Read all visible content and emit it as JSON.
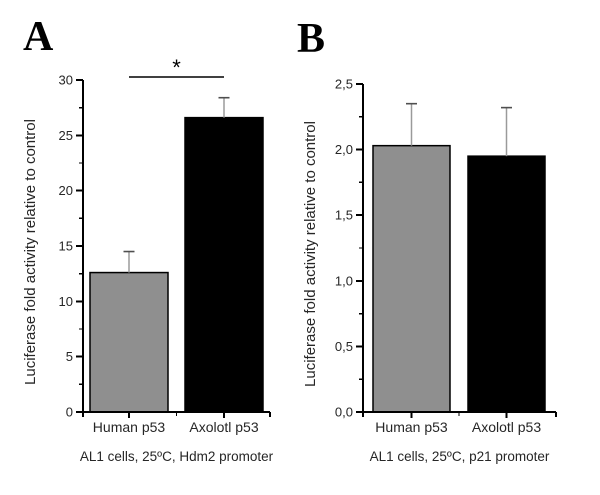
{
  "figure": {
    "background": "#ffffff"
  },
  "colors": {
    "bar_gray": "#8f8f8f",
    "bar_black": "#000000",
    "bar_border": "#000000",
    "axis": "#000000",
    "error_line": "#9a9a9a",
    "error_cap": "#4f4f4f",
    "text": "#262626"
  },
  "chart_data": [
    {
      "type": "bar",
      "panel": "A",
      "title": "AL1 cells, 25ºC, Hdm2 promoter",
      "ylabel": "Luciferase fold activity relative to control",
      "xlabel": "",
      "categories": [
        "Human p53",
        "Axolotl p53"
      ],
      "values": [
        12.6,
        26.6
      ],
      "errors_plus": [
        1.9,
        1.8
      ],
      "bar_color_keys": [
        "bar_gray",
        "bar_black"
      ],
      "ylim": [
        0,
        30
      ],
      "yticks": [
        0,
        5,
        10,
        15,
        20,
        25,
        30
      ],
      "ytick_labels": [
        "0",
        "5",
        "10",
        "15",
        "20",
        "25",
        "30"
      ],
      "minor_ticks_between": true,
      "grid": false,
      "legend": null,
      "significance": {
        "between": [
          0,
          1
        ],
        "label": "*"
      }
    },
    {
      "type": "bar",
      "panel": "B",
      "title": "AL1 cells, 25ºC, p21 promoter",
      "ylabel": "Luciferase fold activity relative to control",
      "xlabel": "",
      "categories": [
        "Human p53",
        "Axolotl p53"
      ],
      "values": [
        2.03,
        1.95
      ],
      "errors_plus": [
        0.32,
        0.37
      ],
      "bar_color_keys": [
        "bar_gray",
        "bar_black"
      ],
      "ylim": [
        0,
        2.5
      ],
      "yticks": [
        0,
        0.5,
        1.0,
        1.5,
        2.0,
        2.5
      ],
      "ytick_labels": [
        "0,0",
        "0,5",
        "1,0",
        "1,5",
        "2,0",
        "2,5"
      ],
      "minor_ticks_between": true,
      "grid": false,
      "legend": null,
      "significance": null
    }
  ]
}
